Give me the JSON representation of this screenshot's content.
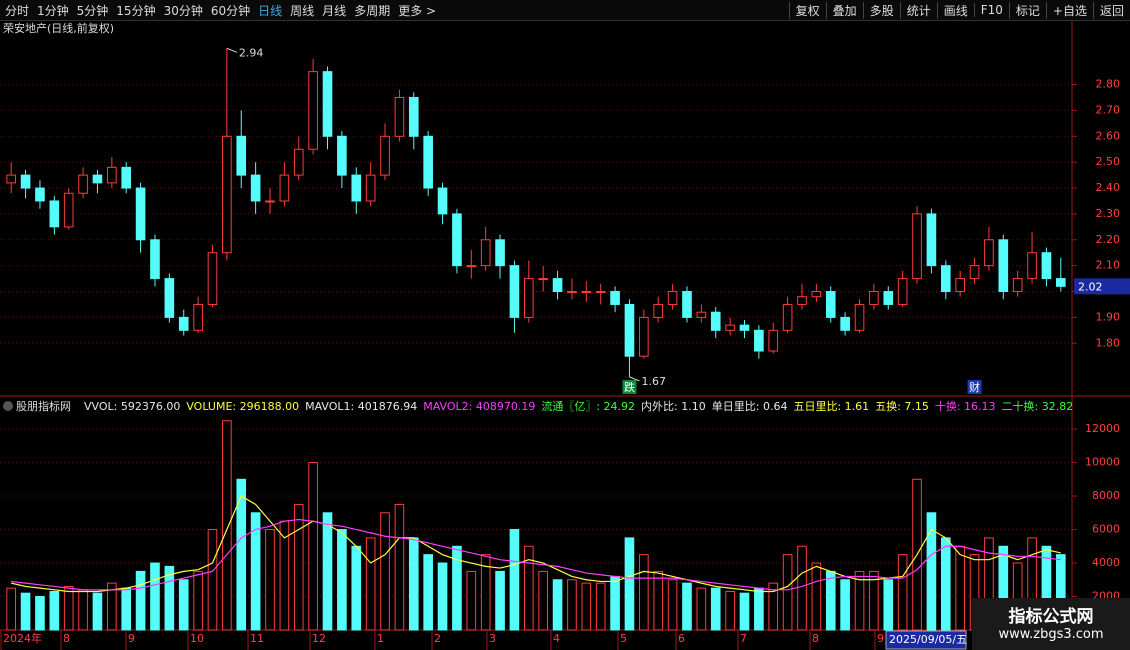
{
  "toolbar": {
    "left": [
      "分时",
      "1分钟",
      "5分钟",
      "15分钟",
      "30分钟",
      "60分钟",
      "日线",
      "周线",
      "月线",
      "多周期",
      "更多 >"
    ],
    "right": [
      "复权",
      "叠加",
      "多股",
      "统计",
      "画线",
      "F10",
      "标记",
      "+自选",
      "返回"
    ]
  },
  "chart_data": [
    {
      "type": "candlestick",
      "title": "荣安地产(日线,前复权)",
      "up_color": "#ff3c3c",
      "down_color": "#54fcfc",
      "grid": true,
      "ylim": [
        1.6,
        2.98
      ],
      "yticks": [
        {
          "value": 1.8,
          "label": "1.80"
        },
        {
          "value": 1.9,
          "label": "1.90"
        },
        {
          "value": 2.0,
          "label": "2.00"
        },
        {
          "value": 2.1,
          "label": "2.10"
        },
        {
          "value": 2.2,
          "label": "2.20"
        },
        {
          "value": 2.3,
          "label": "2.30"
        },
        {
          "value": 2.4,
          "label": "2.40"
        },
        {
          "value": 2.5,
          "label": "2.50"
        },
        {
          "value": 2.6,
          "label": "2.60"
        },
        {
          "value": 2.7,
          "label": "2.70"
        },
        {
          "value": 2.8,
          "label": "2.80"
        }
      ],
      "candles": [
        [
          2.42,
          2.5,
          2.38,
          2.45
        ],
        [
          2.45,
          2.47,
          2.36,
          2.4
        ],
        [
          2.4,
          2.43,
          2.32,
          2.35
        ],
        [
          2.35,
          2.37,
          2.22,
          2.25
        ],
        [
          2.25,
          2.4,
          2.24,
          2.38
        ],
        [
          2.38,
          2.48,
          2.36,
          2.45
        ],
        [
          2.45,
          2.47,
          2.38,
          2.42
        ],
        [
          2.42,
          2.52,
          2.4,
          2.48
        ],
        [
          2.48,
          2.5,
          2.38,
          2.4
        ],
        [
          2.4,
          2.42,
          2.15,
          2.2
        ],
        [
          2.2,
          2.22,
          2.02,
          2.05
        ],
        [
          2.05,
          2.07,
          1.88,
          1.9
        ],
        [
          1.9,
          1.93,
          1.83,
          1.85
        ],
        [
          1.85,
          1.98,
          1.84,
          1.95
        ],
        [
          1.95,
          2.18,
          1.94,
          2.15
        ],
        [
          2.15,
          2.94,
          2.12,
          2.6
        ],
        [
          2.6,
          2.7,
          2.4,
          2.45
        ],
        [
          2.45,
          2.5,
          2.3,
          2.35
        ],
        [
          2.35,
          2.4,
          2.3,
          2.35
        ],
        [
          2.35,
          2.5,
          2.33,
          2.45
        ],
        [
          2.45,
          2.6,
          2.43,
          2.55
        ],
        [
          2.55,
          2.9,
          2.53,
          2.85
        ],
        [
          2.85,
          2.87,
          2.55,
          2.6
        ],
        [
          2.6,
          2.62,
          2.4,
          2.45
        ],
        [
          2.45,
          2.48,
          2.3,
          2.35
        ],
        [
          2.35,
          2.5,
          2.33,
          2.45
        ],
        [
          2.45,
          2.65,
          2.43,
          2.6
        ],
        [
          2.6,
          2.78,
          2.58,
          2.75
        ],
        [
          2.75,
          2.77,
          2.55,
          2.6
        ],
        [
          2.6,
          2.62,
          2.37,
          2.4
        ],
        [
          2.4,
          2.42,
          2.26,
          2.3
        ],
        [
          2.3,
          2.32,
          2.07,
          2.1
        ],
        [
          2.1,
          2.16,
          2.05,
          2.1
        ],
        [
          2.1,
          2.25,
          2.08,
          2.2
        ],
        [
          2.2,
          2.22,
          2.05,
          2.1
        ],
        [
          2.1,
          2.12,
          1.84,
          1.9
        ],
        [
          1.9,
          2.12,
          1.88,
          2.05
        ],
        [
          2.05,
          2.1,
          2.0,
          2.05
        ],
        [
          2.05,
          2.08,
          1.97,
          2.0
        ],
        [
          2.0,
          2.05,
          1.97,
          2.0
        ],
        [
          2.0,
          2.04,
          1.96,
          2.0
        ],
        [
          2.0,
          2.03,
          1.95,
          2.0
        ],
        [
          2.0,
          2.02,
          1.92,
          1.95
        ],
        [
          1.95,
          1.97,
          1.67,
          1.75
        ],
        [
          1.75,
          1.93,
          1.74,
          1.9
        ],
        [
          1.9,
          1.98,
          1.88,
          1.95
        ],
        [
          1.95,
          2.03,
          1.93,
          2.0
        ],
        [
          2.0,
          2.02,
          1.88,
          1.9
        ],
        [
          1.9,
          1.95,
          1.88,
          1.92
        ],
        [
          1.92,
          1.94,
          1.82,
          1.85
        ],
        [
          1.85,
          1.9,
          1.83,
          1.87
        ],
        [
          1.87,
          1.89,
          1.82,
          1.85
        ],
        [
          1.85,
          1.87,
          1.74,
          1.77
        ],
        [
          1.77,
          1.88,
          1.76,
          1.85
        ],
        [
          1.85,
          1.98,
          1.84,
          1.95
        ],
        [
          1.95,
          2.03,
          1.93,
          1.98
        ],
        [
          1.98,
          2.03,
          1.96,
          2.0
        ],
        [
          2.0,
          2.02,
          1.88,
          1.9
        ],
        [
          1.9,
          1.92,
          1.83,
          1.85
        ],
        [
          1.85,
          1.97,
          1.84,
          1.95
        ],
        [
          1.95,
          2.03,
          1.93,
          2.0
        ],
        [
          2.0,
          2.02,
          1.93,
          1.95
        ],
        [
          1.95,
          2.08,
          1.94,
          2.05
        ],
        [
          2.05,
          2.33,
          2.03,
          2.3
        ],
        [
          2.3,
          2.32,
          2.07,
          2.1
        ],
        [
          2.1,
          2.12,
          1.97,
          2.0
        ],
        [
          2.0,
          2.08,
          1.98,
          2.05
        ],
        [
          2.05,
          2.13,
          2.03,
          2.1
        ],
        [
          2.1,
          2.25,
          2.08,
          2.2
        ],
        [
          2.2,
          2.22,
          1.97,
          2.0
        ],
        [
          2.0,
          2.08,
          1.98,
          2.05
        ],
        [
          2.05,
          2.23,
          2.03,
          2.15
        ],
        [
          2.15,
          2.17,
          2.02,
          2.05
        ],
        [
          2.05,
          2.13,
          2.0,
          2.02
        ]
      ],
      "max_label": 2.94,
      "min_label": 1.67,
      "last_price": 2.02,
      "markers": [
        "跌",
        "财"
      ]
    },
    {
      "type": "bar",
      "title": "股朋指标网",
      "indicators": [
        {
          "text": "VVOL: 592376.00",
          "color": "#e8e8e8"
        },
        {
          "text": "VOLUME: 296188.00",
          "color": "#ffff3c"
        },
        {
          "text": "MAVOL1: 401876.94",
          "color": "#e8e8e8"
        },
        {
          "text": "MAVOL2: 408970.19",
          "color": "#ff3cff"
        },
        {
          "text": "流通〖亿〗: 24.92",
          "color": "#3cff3c"
        },
        {
          "text": "内外比: 1.10",
          "color": "#e8e8e8"
        },
        {
          "text": "单日里比: 0.64",
          "color": "#e8e8e8"
        },
        {
          "text": "五日里比: 1.61",
          "color": "#ffff3c"
        },
        {
          "text": "五换: 7.15",
          "color": "#ffff3c"
        },
        {
          "text": "十换: 16.13",
          "color": "#ff3cff"
        },
        {
          "text": "二十换: 32.82",
          "color": "#3cff3c"
        }
      ],
      "ylim": [
        0,
        12900
      ],
      "yticks": [
        2000,
        4000,
        6000,
        8000,
        10000,
        12000
      ],
      "grid": true,
      "values": [
        2500,
        2200,
        2000,
        2300,
        2600,
        2400,
        2200,
        2800,
        2500,
        3500,
        4000,
        3800,
        3000,
        3500,
        6000,
        12500,
        9000,
        7000,
        6000,
        6500,
        7500,
        10000,
        7000,
        6000,
        5000,
        5500,
        7000,
        7500,
        5500,
        4500,
        4000,
        5000,
        3500,
        4500,
        3500,
        6000,
        5000,
        3500,
        3000,
        3000,
        2800,
        2800,
        3200,
        5500,
        4500,
        3500,
        3000,
        2800,
        2500,
        2500,
        2300,
        2200,
        2500,
        2800,
        4500,
        5000,
        4000,
        3500,
        3000,
        3500,
        3500,
        3000,
        4500,
        9000,
        7000,
        5500,
        5000,
        4500,
        5500,
        5000,
        4000,
        5500,
        5000,
        4500
      ],
      "series": [
        {
          "color": "#ffff3c",
          "values": [
            2800,
            2600,
            2500,
            2400,
            2300,
            2300,
            2300,
            2400,
            2500,
            2700,
            3000,
            3300,
            3500,
            3600,
            4000,
            6000,
            8000,
            7500,
            6500,
            5500,
            6000,
            6500,
            6300,
            5800,
            5000,
            4000,
            4500,
            5500,
            5500,
            5000,
            4500,
            4200,
            4000,
            3800,
            3700,
            3900,
            4200,
            4000,
            3600,
            3200,
            3000,
            2900,
            2900,
            3200,
            3500,
            3400,
            3200,
            3000,
            2800,
            2600,
            2500,
            2400,
            2300,
            2300,
            2600,
            3400,
            3800,
            3500,
            3200,
            3000,
            3000,
            3100,
            3200,
            4500,
            6000,
            5500,
            4500,
            4200,
            4200,
            4500,
            4200,
            4500,
            4800,
            4600
          ]
        },
        {
          "color": "#ff3cff",
          "values": [
            2900,
            2800,
            2700,
            2600,
            2500,
            2400,
            2400,
            2400,
            2400,
            2500,
            2700,
            2900,
            3100,
            3300,
            3500,
            4500,
            5500,
            6000,
            6200,
            6500,
            6600,
            6500,
            6300,
            6200,
            6000,
            5800,
            5600,
            5500,
            5400,
            5200,
            5000,
            4800,
            4600,
            4400,
            4200,
            4100,
            4000,
            3900,
            3800,
            3600,
            3400,
            3300,
            3200,
            3100,
            3100,
            3100,
            3100,
            3000,
            2900,
            2800,
            2700,
            2600,
            2500,
            2400,
            2400,
            2600,
            2900,
            3100,
            3200,
            3200,
            3200,
            3100,
            3100,
            3600,
            4500,
            5000,
            5000,
            4800,
            4600,
            4500,
            4400,
            4400,
            4300,
            4200
          ]
        }
      ]
    }
  ],
  "x_axis": {
    "labels": [
      "2024年",
      "8",
      "9",
      "10",
      "11",
      "12",
      "1",
      "2",
      "3",
      "4",
      "5",
      "6",
      "7",
      "8",
      "9"
    ],
    "cursor_date": "2025/09/05/五"
  },
  "watermark": {
    "title": "指标公式网",
    "url": "www.zbgs3.com"
  }
}
